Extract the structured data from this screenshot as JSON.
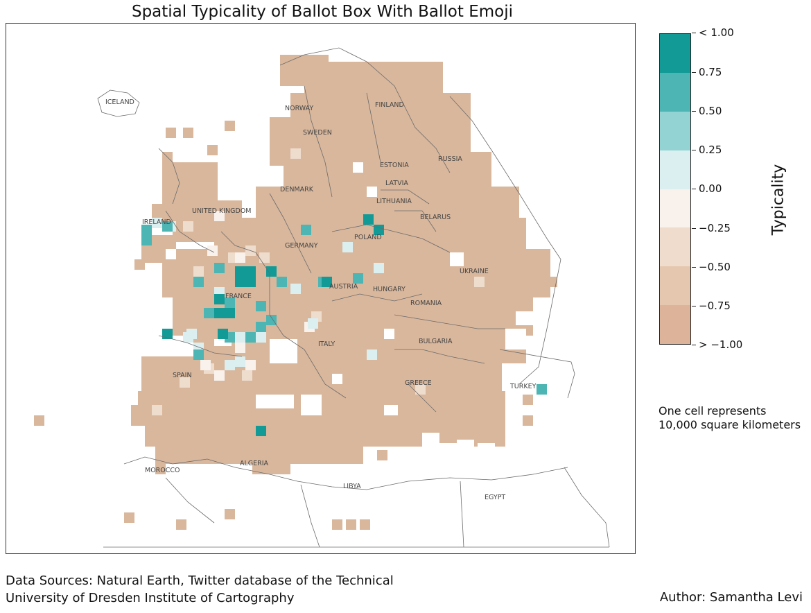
{
  "title": "Spatial Typicality of Ballot Box With Ballot Emoji",
  "colorbar": {
    "label": "Typicality",
    "ticks": [
      "< 1.00",
      "0.75",
      "0.50",
      "0.25",
      "0.00",
      "−0.25",
      "−0.50",
      "−0.75",
      "> −1.00"
    ],
    "colors": [
      "#119a96",
      "#4db5b3",
      "#93d3d3",
      "#dbeff1",
      "#f9f1ec",
      "#efdccd",
      "#e5c7b0",
      "#ddb49a"
    ]
  },
  "map": {
    "base_color": "#d9b79c",
    "country_labels": [
      "ICELAND",
      "NORWAY",
      "FINLAND",
      "SWEDEN",
      "RUSSIA",
      "ESTONIA",
      "LATVIA",
      "DENMARK",
      "LITHUANIA",
      "UNITED KINGDOM",
      "IRELAND",
      "BELARUS",
      "POLAND",
      "GERMANY",
      "UKRAINE",
      "AUSTRIA",
      "HUNGARY",
      "FRANCE",
      "ROMANIA",
      "BULGARIA",
      "ITALY",
      "SPAIN",
      "GREECE",
      "TURKEY",
      "MOROCCO",
      "ALGERIA",
      "LIBYA",
      "EGYPT"
    ]
  },
  "note": "One cell represents 10,000 square kilometers",
  "sources": [
    "Data Sources: Natural Earth, Twitter database of the Technical",
    "University of Dresden Institute of Cartography"
  ],
  "author": "Author: Samantha Levi"
}
